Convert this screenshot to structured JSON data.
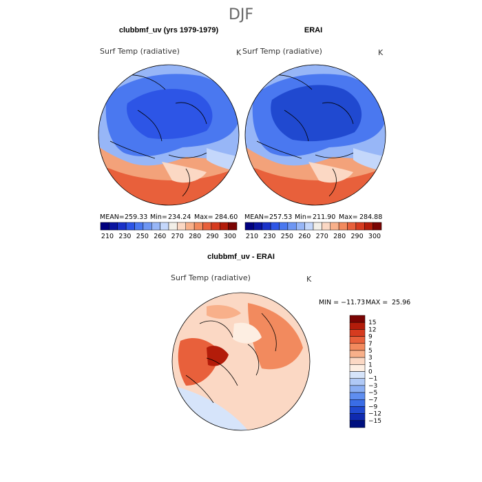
{
  "figure": {
    "season_title": "DJF"
  },
  "chart_data": [
    {
      "type": "heatmap",
      "projection": "north-polar-stereographic",
      "title": "clubbmf_uv (yrs 1979-1979)",
      "variable": "Surf Temp (radiative)",
      "units": "K",
      "stats": {
        "mean_label": "MEAN=",
        "mean": "259.33",
        "min_label": "Min=",
        "min": "234.24",
        "max_label": "Max=",
        "max": "284.60"
      },
      "colorbar": {
        "orientation": "horizontal",
        "tick_labels": [
          "210",
          "230",
          "250",
          "260",
          "270",
          "280",
          "290",
          "300"
        ],
        "levels": [
          210,
          220,
          230,
          240,
          250,
          255,
          260,
          265,
          270,
          275,
          280,
          285,
          290,
          295,
          300
        ],
        "colors": [
          "#00007f",
          "#0a14a0",
          "#1a32c8",
          "#2d55e6",
          "#4a78f0",
          "#6e96f3",
          "#97b6f7",
          "#c4d7fb",
          "#f2efe8",
          "#fbd8c4",
          "#f8b08a",
          "#f28a5e",
          "#e8603b",
          "#d63b1f",
          "#b31c0a",
          "#7a0403"
        ]
      }
    },
    {
      "type": "heatmap",
      "projection": "north-polar-stereographic",
      "title": "ERAI",
      "variable": "Surf Temp (radiative)",
      "units": "K",
      "stats": {
        "mean_label": "MEAN=",
        "mean": "257.53",
        "min_label": "Min=",
        "min": "211.90",
        "max_label": "Max=",
        "max": "284.88"
      },
      "colorbar": {
        "orientation": "horizontal",
        "tick_labels": [
          "210",
          "230",
          "250",
          "260",
          "270",
          "280",
          "290",
          "300"
        ],
        "levels": [
          210,
          220,
          230,
          240,
          250,
          255,
          260,
          265,
          270,
          275,
          280,
          285,
          290,
          295,
          300
        ],
        "colors": [
          "#00007f",
          "#0a14a0",
          "#1a32c8",
          "#2d55e6",
          "#4a78f0",
          "#6e96f3",
          "#97b6f7",
          "#c4d7fb",
          "#f2efe8",
          "#fbd8c4",
          "#f8b08a",
          "#f28a5e",
          "#e8603b",
          "#d63b1f",
          "#b31c0a",
          "#7a0403"
        ]
      }
    },
    {
      "type": "heatmap",
      "projection": "north-polar-stereographic",
      "title": "clubbmf_uv - ERAI",
      "variable": "Surf Temp (radiative)",
      "units": "K",
      "stats": {
        "min_label": "MIN =",
        "min": "−11.73",
        "max_label": "MAX =",
        "max": "25.96"
      },
      "colorbar": {
        "orientation": "vertical",
        "tick_labels": [
          "15",
          "12",
          "9",
          "7",
          "5",
          "3",
          "1",
          "0",
          "−1",
          "−3",
          "−5",
          "−7",
          "−9",
          "−12",
          "−15"
        ],
        "colors": [
          "#7a0403",
          "#b31c0a",
          "#d63b1f",
          "#e8603b",
          "#f28a5e",
          "#f8b08a",
          "#fbd8c4",
          "#fdeee2",
          "#d6e4fa",
          "#b0c9f6",
          "#8aaef3",
          "#5f8ef0",
          "#3a6de6",
          "#2049d0",
          "#0f2ab0",
          "#00107f"
        ]
      }
    }
  ]
}
